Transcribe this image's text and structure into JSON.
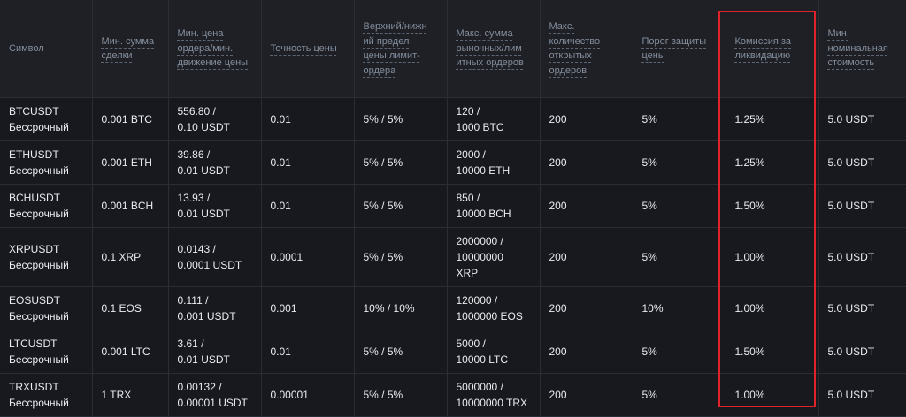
{
  "table": {
    "header": [
      [
        "Символ"
      ],
      [
        "Мин. сумма",
        "сделки"
      ],
      [
        "Мин. цена",
        "ордера/мин.",
        "движение цены"
      ],
      [
        "Точность цены"
      ],
      [
        "Верхний/нижн",
        "ий предел",
        "цены лимит-",
        "ордера"
      ],
      [
        "Макс. сумма",
        "рыночных/лим",
        "итных ордеров"
      ],
      [
        "Макс.",
        "количество",
        "открытых",
        "ордеров"
      ],
      [
        "Порог защиты",
        "цены"
      ],
      [
        "Комиссия за",
        "ликвидацию"
      ],
      [
        "Мин.",
        "номинальная",
        "стоимость"
      ]
    ],
    "rows": [
      [
        [
          "BTCUSDT",
          "Бессрочный"
        ],
        [
          "0.001 BTC"
        ],
        [
          "556.80 /",
          "0.10 USDT"
        ],
        [
          "0.01"
        ],
        [
          "5% / 5%"
        ],
        [
          "120 /",
          "1000 BTC"
        ],
        [
          "200"
        ],
        [
          "5%"
        ],
        [
          "1.25%"
        ],
        [
          "5.0 USDT"
        ]
      ],
      [
        [
          "ETHUSDT",
          "Бессрочный"
        ],
        [
          "0.001 ETH"
        ],
        [
          "39.86 /",
          "0.01 USDT"
        ],
        [
          "0.01"
        ],
        [
          "5% / 5%"
        ],
        [
          "2000 /",
          "10000 ETH"
        ],
        [
          "200"
        ],
        [
          "5%"
        ],
        [
          "1.25%"
        ],
        [
          "5.0 USDT"
        ]
      ],
      [
        [
          "BCHUSDT",
          "Бессрочный"
        ],
        [
          "0.001 BCH"
        ],
        [
          "13.93 /",
          "0.01 USDT"
        ],
        [
          "0.01"
        ],
        [
          "5% / 5%"
        ],
        [
          "850 /",
          "10000 BCH"
        ],
        [
          "200"
        ],
        [
          "5%"
        ],
        [
          "1.50%"
        ],
        [
          "5.0 USDT"
        ]
      ],
      [
        [
          "XRPUSDT",
          "Бессрочный"
        ],
        [
          "0.1 XRP"
        ],
        [
          "0.0143 /",
          "0.0001 USDT"
        ],
        [
          "0.0001"
        ],
        [
          "5% / 5%"
        ],
        [
          "2000000 /",
          "10000000",
          "XRP"
        ],
        [
          "200"
        ],
        [
          "5%"
        ],
        [
          "1.00%"
        ],
        [
          "5.0 USDT"
        ]
      ],
      [
        [
          "EOSUSDT",
          "Бессрочный"
        ],
        [
          "0.1 EOS"
        ],
        [
          "0.111 /",
          "0.001 USDT"
        ],
        [
          "0.001"
        ],
        [
          "10% / 10%"
        ],
        [
          "120000 /",
          "1000000 EOS"
        ],
        [
          "200"
        ],
        [
          "10%"
        ],
        [
          "1.00%"
        ],
        [
          "5.0 USDT"
        ]
      ],
      [
        [
          "LTCUSDT",
          "Бессрочный"
        ],
        [
          "0.001 LTC"
        ],
        [
          "3.61 /",
          "0.01 USDT"
        ],
        [
          "0.01"
        ],
        [
          "5% / 5%"
        ],
        [
          "5000 /",
          "10000 LTC"
        ],
        [
          "200"
        ],
        [
          "5%"
        ],
        [
          "1.50%"
        ],
        [
          "5.0 USDT"
        ]
      ],
      [
        [
          "TRXUSDT",
          "Бессрочный"
        ],
        [
          "1 TRX"
        ],
        [
          "0.00132 /",
          "0.00001 USDT"
        ],
        [
          "0.00001"
        ],
        [
          "5% / 5%"
        ],
        [
          "5000000 /",
          "10000000 TRX"
        ],
        [
          "200"
        ],
        [
          "5%"
        ],
        [
          "1.00%"
        ],
        [
          "5.0 USDT"
        ]
      ]
    ]
  }
}
